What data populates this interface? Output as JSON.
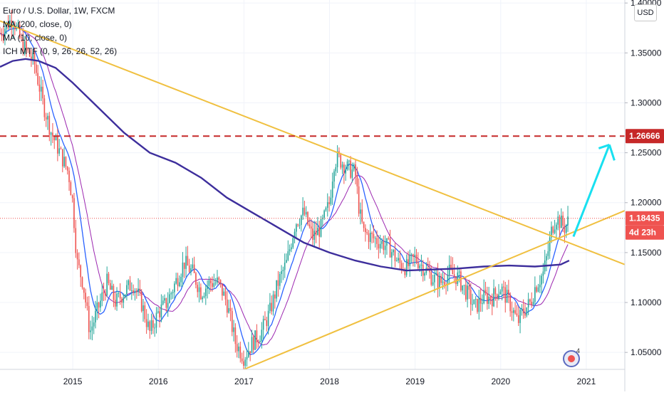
{
  "legend": {
    "title": "Euro / U.S. Dollar, 1W, FXCM",
    "ma200": "MA (200, close, 0)",
    "ma10": "MA (10, close, 0)",
    "ichimoku": "ICH MTF (0, 9, 26, 26, 52, 26)"
  },
  "currency_badge": "USD",
  "price_labels": {
    "target": "1.26666",
    "last": "1.18435",
    "countdown": "4d 23h"
  },
  "colors": {
    "target_line": "#c62828",
    "last_price": "#ef5350",
    "trendline": "#f0c040",
    "ma200": "#3d2e9c",
    "ma10": "#2962ff",
    "ichimoku": "#9c27b0",
    "up_candle": "#26a69a",
    "down_candle": "#ef5350",
    "projection_arrow": "#18e0f0"
  },
  "chart_data": {
    "type": "candlestick",
    "symbol": "Euro / U.S. Dollar",
    "interval": "1W",
    "exchange": "FXCM",
    "xlim": [
      2014.15,
      2021.45
    ],
    "ylim": [
      1.033,
      1.403
    ],
    "x_ticks": [
      "2015",
      "2016",
      "2017",
      "2018",
      "2019",
      "2020",
      "2021"
    ],
    "y_ticks": [
      "1.40000",
      "1.35000",
      "1.30000",
      "1.25000",
      "1.20000",
      "1.15000",
      "1.10000",
      "1.05000"
    ],
    "target_level": 1.26666,
    "last_price": 1.18435,
    "price_path": [
      [
        2014.15,
        1.37
      ],
      [
        2014.3,
        1.385
      ],
      [
        2014.4,
        1.36
      ],
      [
        2014.55,
        1.34
      ],
      [
        2014.65,
        1.3
      ],
      [
        2014.75,
        1.27
      ],
      [
        2014.85,
        1.25
      ],
      [
        2014.95,
        1.23
      ],
      [
        2015.0,
        1.2
      ],
      [
        2015.05,
        1.14
      ],
      [
        2015.12,
        1.12
      ],
      [
        2015.2,
        1.07
      ],
      [
        2015.28,
        1.09
      ],
      [
        2015.4,
        1.12
      ],
      [
        2015.5,
        1.1
      ],
      [
        2015.6,
        1.11
      ],
      [
        2015.7,
        1.12
      ],
      [
        2015.8,
        1.1
      ],
      [
        2015.9,
        1.07
      ],
      [
        2016.0,
        1.09
      ],
      [
        2016.1,
        1.1
      ],
      [
        2016.2,
        1.12
      ],
      [
        2016.3,
        1.14
      ],
      [
        2016.4,
        1.13
      ],
      [
        2016.5,
        1.11
      ],
      [
        2016.6,
        1.12
      ],
      [
        2016.7,
        1.12
      ],
      [
        2016.8,
        1.1
      ],
      [
        2016.9,
        1.06
      ],
      [
        2017.0,
        1.045
      ],
      [
        2017.1,
        1.06
      ],
      [
        2017.2,
        1.07
      ],
      [
        2017.3,
        1.09
      ],
      [
        2017.4,
        1.12
      ],
      [
        2017.5,
        1.14
      ],
      [
        2017.6,
        1.18
      ],
      [
        2017.7,
        1.19
      ],
      [
        2017.8,
        1.165
      ],
      [
        2017.9,
        1.175
      ],
      [
        2018.0,
        1.2
      ],
      [
        2018.05,
        1.24
      ],
      [
        2018.1,
        1.245
      ],
      [
        2018.2,
        1.235
      ],
      [
        2018.3,
        1.23
      ],
      [
        2018.35,
        1.19
      ],
      [
        2018.4,
        1.17
      ],
      [
        2018.5,
        1.165
      ],
      [
        2018.6,
        1.16
      ],
      [
        2018.7,
        1.155
      ],
      [
        2018.8,
        1.14
      ],
      [
        2018.9,
        1.135
      ],
      [
        2019.0,
        1.145
      ],
      [
        2019.1,
        1.135
      ],
      [
        2019.2,
        1.125
      ],
      [
        2019.3,
        1.12
      ],
      [
        2019.4,
        1.13
      ],
      [
        2019.5,
        1.125
      ],
      [
        2019.6,
        1.11
      ],
      [
        2019.7,
        1.095
      ],
      [
        2019.8,
        1.105
      ],
      [
        2019.9,
        1.105
      ],
      [
        2020.0,
        1.115
      ],
      [
        2020.1,
        1.1
      ],
      [
        2020.2,
        1.08
      ],
      [
        2020.25,
        1.09
      ],
      [
        2020.35,
        1.1
      ],
      [
        2020.4,
        1.115
      ],
      [
        2020.5,
        1.13
      ],
      [
        2020.55,
        1.15
      ],
      [
        2020.6,
        1.175
      ],
      [
        2020.65,
        1.185
      ],
      [
        2020.7,
        1.18
      ],
      [
        2020.75,
        1.175
      ],
      [
        2020.8,
        1.184
      ]
    ],
    "ma200_path": [
      [
        2014.15,
        1.336
      ],
      [
        2014.3,
        1.342
      ],
      [
        2014.45,
        1.344
      ],
      [
        2014.6,
        1.342
      ],
      [
        2014.8,
        1.335
      ],
      [
        2015.0,
        1.32
      ],
      [
        2015.3,
        1.295
      ],
      [
        2015.6,
        1.27
      ],
      [
        2015.9,
        1.25
      ],
      [
        2016.2,
        1.24
      ],
      [
        2016.5,
        1.225
      ],
      [
        2016.8,
        1.205
      ],
      [
        2017.1,
        1.19
      ],
      [
        2017.4,
        1.175
      ],
      [
        2017.7,
        1.16
      ],
      [
        2018.0,
        1.15
      ],
      [
        2018.3,
        1.142
      ],
      [
        2018.6,
        1.136
      ],
      [
        2018.9,
        1.132
      ],
      [
        2019.2,
        1.133
      ],
      [
        2019.5,
        1.134
      ],
      [
        2019.8,
        1.136
      ],
      [
        2020.1,
        1.137
      ],
      [
        2020.4,
        1.136
      ],
      [
        2020.7,
        1.138
      ],
      [
        2020.8,
        1.142
      ]
    ],
    "trendlines": [
      {
        "from": [
          2014.15,
          1.382
        ],
        "to": [
          2021.45,
          1.138
        ]
      },
      {
        "from": [
          2017.0,
          1.033
        ],
        "to": [
          2021.45,
          1.192
        ]
      }
    ],
    "projection": {
      "from": [
        2020.85,
        1.166
      ],
      "to": [
        2021.27,
        1.258
      ]
    }
  }
}
